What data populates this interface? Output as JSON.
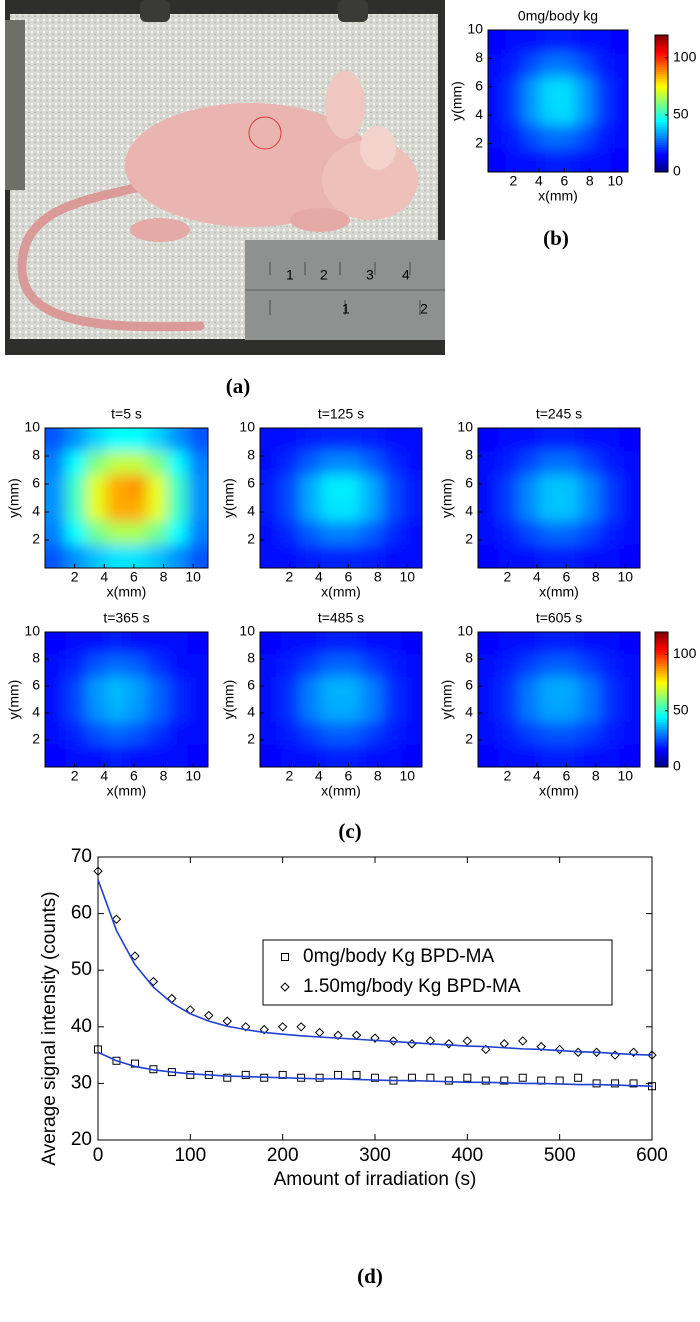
{
  "panel_labels": [
    "(a)",
    "(b)",
    "(c)",
    "(d)"
  ],
  "photo": {
    "ruler_labels_top": [
      "1",
      "2",
      "3",
      "4"
    ],
    "ruler_labels_bottom": [
      "1",
      "2"
    ]
  },
  "chart_data": [
    {
      "type": "heatmap",
      "title": "0mg/body kg",
      "x_label": "x(mm)",
      "y_label": "y(mm)",
      "xlim": [
        0,
        11
      ],
      "ylim": [
        0,
        10
      ],
      "xticks": [
        2,
        4,
        6,
        8,
        10
      ],
      "yticks": [
        2,
        4,
        6,
        8,
        10
      ],
      "zlim": [
        0,
        120
      ],
      "zticks": [
        0,
        50,
        100
      ],
      "colormap": "jet",
      "colorbar": true,
      "z": [
        [
          15,
          16,
          17,
          18,
          18,
          17,
          16,
          15
        ],
        [
          16,
          18,
          24,
          29,
          29,
          24,
          18,
          16
        ],
        [
          17,
          22,
          33,
          41,
          41,
          33,
          22,
          17
        ],
        [
          17,
          22,
          33,
          40,
          41,
          33,
          22,
          17
        ],
        [
          16,
          18,
          24,
          28,
          28,
          24,
          18,
          16
        ],
        [
          15,
          16,
          17,
          18,
          18,
          17,
          16,
          15
        ]
      ]
    },
    {
      "type": "heatmap",
      "title": "t=5 s",
      "x_label": "x(mm)",
      "y_label": "y(mm)",
      "xlim": [
        0,
        11
      ],
      "ylim": [
        0,
        10
      ],
      "xticks": [
        2,
        4,
        6,
        8,
        10
      ],
      "yticks": [
        2,
        4,
        6,
        8,
        10
      ],
      "zlim": [
        0,
        120
      ],
      "colormap": "jet",
      "z": [
        [
          25,
          32,
          40,
          45,
          45,
          40,
          32,
          25
        ],
        [
          30,
          45,
          60,
          68,
          68,
          60,
          45,
          30
        ],
        [
          32,
          52,
          72,
          85,
          88,
          72,
          52,
          32
        ],
        [
          32,
          52,
          72,
          85,
          85,
          72,
          52,
          32
        ],
        [
          30,
          45,
          58,
          65,
          65,
          58,
          45,
          30
        ],
        [
          25,
          32,
          38,
          42,
          42,
          38,
          32,
          25
        ]
      ]
    },
    {
      "type": "heatmap",
      "title": "t=125 s",
      "x_label": "x(mm)",
      "y_label": "y(mm)",
      "xlim": [
        0,
        11
      ],
      "ylim": [
        0,
        10
      ],
      "xticks": [
        2,
        4,
        6,
        8,
        10
      ],
      "yticks": [
        2,
        4,
        6,
        8,
        10
      ],
      "zlim": [
        0,
        120
      ],
      "colormap": "jet",
      "z": [
        [
          16,
          17,
          18,
          19,
          19,
          18,
          17,
          16
        ],
        [
          17,
          20,
          26,
          31,
          31,
          26,
          20,
          17
        ],
        [
          18,
          24,
          35,
          43,
          43,
          35,
          24,
          18
        ],
        [
          18,
          24,
          35,
          42,
          42,
          35,
          24,
          18
        ],
        [
          17,
          20,
          26,
          30,
          30,
          26,
          20,
          17
        ],
        [
          16,
          17,
          18,
          19,
          19,
          18,
          17,
          16
        ]
      ]
    },
    {
      "type": "heatmap",
      "title": "t=245 s",
      "x_label": "x(mm)",
      "y_label": "y(mm)",
      "xlim": [
        0,
        11
      ],
      "ylim": [
        0,
        10
      ],
      "xticks": [
        2,
        4,
        6,
        8,
        10
      ],
      "yticks": [
        2,
        4,
        6,
        8,
        10
      ],
      "zlim": [
        0,
        120
      ],
      "colormap": "jet",
      "z": [
        [
          15,
          16,
          17,
          18,
          18,
          17,
          16,
          15
        ],
        [
          16,
          18,
          23,
          28,
          28,
          23,
          18,
          16
        ],
        [
          17,
          22,
          31,
          38,
          38,
          31,
          22,
          17
        ],
        [
          17,
          22,
          31,
          38,
          38,
          31,
          22,
          17
        ],
        [
          16,
          18,
          23,
          27,
          27,
          23,
          18,
          16
        ],
        [
          15,
          16,
          17,
          18,
          18,
          17,
          16,
          15
        ]
      ]
    },
    {
      "type": "heatmap",
      "title": "t=365 s",
      "x_label": "x(mm)",
      "y_label": "y(mm)",
      "xlim": [
        0,
        11
      ],
      "ylim": [
        0,
        10
      ],
      "xticks": [
        2,
        4,
        6,
        8,
        10
      ],
      "yticks": [
        2,
        4,
        6,
        8,
        10
      ],
      "zlim": [
        0,
        120
      ],
      "colormap": "jet",
      "z": [
        [
          15,
          16,
          17,
          18,
          17,
          16,
          16,
          15
        ],
        [
          16,
          19,
          25,
          28,
          26,
          21,
          17,
          16
        ],
        [
          17,
          23,
          33,
          37,
          34,
          27,
          20,
          17
        ],
        [
          17,
          23,
          32,
          36,
          33,
          27,
          20,
          17
        ],
        [
          16,
          19,
          24,
          27,
          25,
          21,
          17,
          16
        ],
        [
          15,
          16,
          17,
          18,
          17,
          16,
          16,
          15
        ]
      ]
    },
    {
      "type": "heatmap",
      "title": "t=485 s",
      "x_label": "x(mm)",
      "y_label": "y(mm)",
      "xlim": [
        0,
        11
      ],
      "ylim": [
        0,
        10
      ],
      "xticks": [
        2,
        4,
        6,
        8,
        10
      ],
      "yticks": [
        2,
        4,
        6,
        8,
        10
      ],
      "zlim": [
        0,
        120
      ],
      "colormap": "jet",
      "z": [
        [
          15,
          16,
          17,
          18,
          18,
          17,
          16,
          15
        ],
        [
          16,
          18,
          22,
          27,
          27,
          22,
          18,
          16
        ],
        [
          17,
          21,
          30,
          36,
          36,
          30,
          21,
          17
        ],
        [
          17,
          21,
          30,
          35,
          35,
          30,
          21,
          17
        ],
        [
          16,
          18,
          22,
          26,
          26,
          22,
          18,
          16
        ],
        [
          15,
          16,
          17,
          18,
          18,
          17,
          16,
          15
        ]
      ]
    },
    {
      "type": "heatmap",
      "title": "t=605 s",
      "x_label": "x(mm)",
      "y_label": "y(mm)",
      "xlim": [
        0,
        11
      ],
      "ylim": [
        0,
        10
      ],
      "xticks": [
        2,
        4,
        6,
        8,
        10
      ],
      "yticks": [
        2,
        4,
        6,
        8,
        10
      ],
      "zlim": [
        0,
        120
      ],
      "zticks": [
        0,
        50,
        100
      ],
      "colormap": "jet",
      "colorbar": true,
      "z": [
        [
          15,
          16,
          17,
          18,
          18,
          17,
          16,
          15
        ],
        [
          16,
          18,
          22,
          26,
          26,
          22,
          18,
          16
        ],
        [
          17,
          21,
          29,
          35,
          35,
          29,
          21,
          17
        ],
        [
          17,
          21,
          29,
          34,
          34,
          29,
          21,
          17
        ],
        [
          16,
          18,
          22,
          25,
          25,
          22,
          18,
          16
        ],
        [
          15,
          16,
          17,
          18,
          18,
          17,
          16,
          15
        ]
      ]
    },
    {
      "type": "scatter",
      "x_label": "Amount of irradiation (s)",
      "y_label": "Average signal intensity (counts)",
      "xlim": [
        0,
        600
      ],
      "ylim": [
        20,
        70
      ],
      "xticks": [
        0,
        100,
        200,
        300,
        400,
        500,
        600
      ],
      "yticks": [
        20,
        30,
        40,
        50,
        60,
        70
      ],
      "legend": "upper right",
      "x": [
        0,
        20,
        40,
        60,
        80,
        100,
        120,
        140,
        160,
        180,
        200,
        220,
        240,
        260,
        280,
        300,
        320,
        340,
        360,
        380,
        400,
        420,
        440,
        460,
        480,
        500,
        520,
        540,
        560,
        580,
        600
      ],
      "series": [
        {
          "name": "0mg/body Kg BPD-MA",
          "marker": "square",
          "color": "#000000",
          "fit_color": "#2040d0",
          "values": [
            36,
            34,
            33.5,
            32.5,
            32,
            31.5,
            31.5,
            31,
            31.5,
            31,
            31.5,
            31,
            31,
            31.5,
            31.5,
            31,
            30.5,
            31,
            31,
            30.5,
            31,
            30.5,
            30.5,
            31,
            30.5,
            30.5,
            31,
            30,
            30,
            30,
            29.5
          ],
          "fit": [
            35.5,
            34,
            33,
            32.4,
            32,
            31.7,
            31.5,
            31.3,
            31.2,
            31.1,
            31,
            30.9,
            30.8,
            30.8,
            30.7,
            30.6,
            30.5,
            30.5,
            30.4,
            30.3,
            30.2,
            30.2,
            30.1,
            30,
            30,
            29.9,
            29.8,
            29.8,
            29.7,
            29.6,
            29.5
          ]
        },
        {
          "name": "1.50mg/body Kg BPD-MA",
          "marker": "diamond",
          "color": "#000000",
          "fit_color": "#2040d0",
          "values": [
            67.5,
            59,
            52.5,
            48,
            45,
            43,
            42,
            41,
            40,
            39.5,
            40,
            40,
            39,
            38.5,
            38.5,
            38,
            37.5,
            37,
            37.5,
            37,
            37.5,
            36,
            37,
            37.5,
            36.5,
            36,
            35.5,
            35.5,
            35,
            35.5,
            35
          ],
          "fit": [
            66,
            57,
            51,
            47,
            44.2,
            42.3,
            41,
            40.1,
            39.5,
            39,
            38.7,
            38.4,
            38.2,
            38,
            37.8,
            37.6,
            37.4,
            37.2,
            37,
            36.8,
            36.6,
            36.5,
            36.3,
            36.1,
            36,
            35.8,
            35.6,
            35.5,
            35.3,
            35.1,
            35
          ]
        }
      ]
    }
  ]
}
